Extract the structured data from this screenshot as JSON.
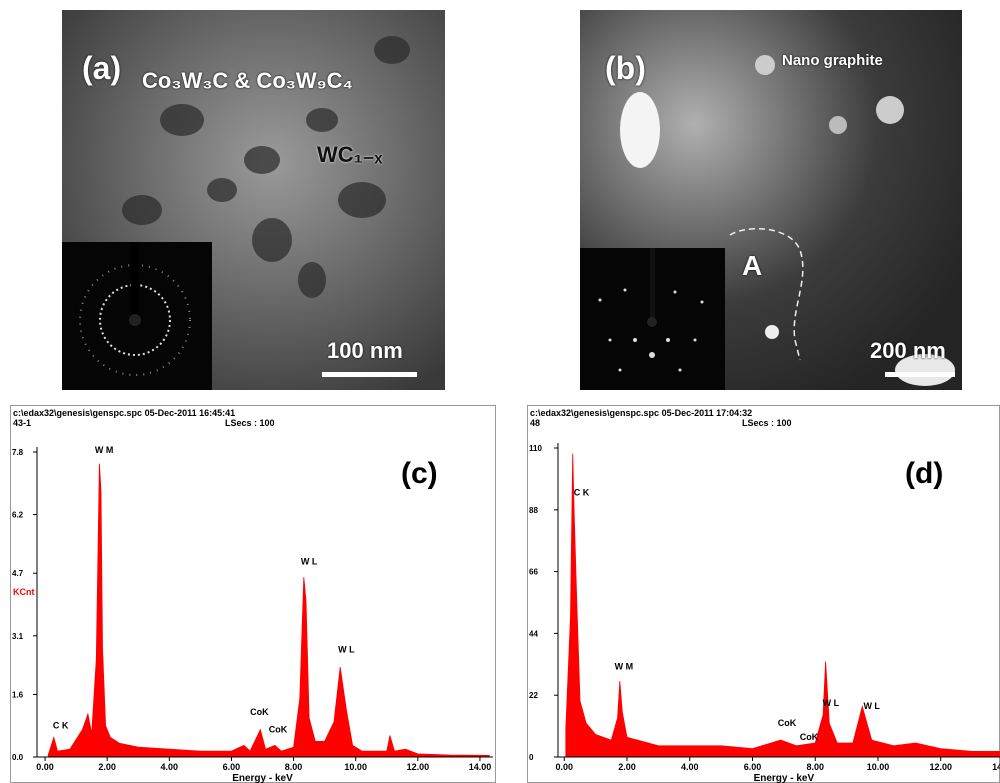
{
  "images": [
    {
      "label": "(a)",
      "notes": [
        "Co₃W₃C & Co₃W₉C₄",
        "WC₁₋ₓ"
      ],
      "scale_bar": "100 nm"
    },
    {
      "label": "(b)",
      "notes": [
        "Nano graphite",
        "A"
      ],
      "scale_bar": "200 nm"
    }
  ],
  "chart_data": [
    {
      "type": "area",
      "title": "(c)",
      "header": [
        "c:\\edax32\\genesis\\genspc.spc  05-Dec-2011 16:45:41",
        "43-1",
        "LSecs : 100"
      ],
      "ylabel": "KCnt",
      "xlabel": "Energy - keV",
      "color": "#ff0000",
      "x": [
        0.1,
        0.28,
        0.4,
        0.8,
        1.2,
        1.38,
        1.5,
        1.65,
        1.75,
        1.8,
        1.85,
        1.95,
        2.1,
        2.4,
        3,
        4,
        5,
        6,
        6.4,
        6.6,
        6.93,
        7.1,
        7.4,
        7.6,
        8.0,
        8.2,
        8.33,
        8.4,
        8.5,
        8.7,
        9.0,
        9.3,
        9.5,
        9.7,
        9.9,
        10.2,
        11.0,
        11.1,
        11.25,
        11.6,
        12,
        13,
        14.3
      ],
      "values": [
        0.05,
        0.5,
        0.15,
        0.2,
        0.7,
        1.1,
        0.6,
        2.5,
        7.5,
        6.8,
        2.8,
        0.8,
        0.5,
        0.35,
        0.25,
        0.2,
        0.15,
        0.15,
        0.3,
        0.15,
        0.7,
        0.2,
        0.3,
        0.15,
        0.25,
        1.5,
        4.6,
        4.0,
        1.0,
        0.4,
        0.4,
        0.9,
        2.3,
        1.2,
        0.3,
        0.15,
        0.15,
        0.55,
        0.15,
        0.2,
        0.08,
        0.05,
        0.04
      ],
      "xlim": [
        -0.26,
        14.42
      ],
      "ylim": [
        0,
        7.8
      ],
      "xticks": [
        {
          "value": 0,
          "label": "0.00"
        },
        {
          "value": 2,
          "label": "2.00"
        },
        {
          "value": 4,
          "label": "4.00"
        },
        {
          "value": 6,
          "label": "6.00"
        },
        {
          "value": 8,
          "label": "8.00"
        },
        {
          "value": 10,
          "label": "10.00"
        },
        {
          "value": 12,
          "label": "12.00"
        },
        {
          "value": 14,
          "label": "14.00"
        }
      ],
      "yticks": [
        {
          "value": 0,
          "label": "0.0"
        },
        1.6,
        3.1,
        4.7,
        6.2,
        7.8
      ],
      "annotations": [
        {
          "text": "C K",
          "x": 0.5,
          "y": 0.65
        },
        {
          "text": "W M",
          "x": 1.9,
          "y": 7.7
        },
        {
          "text": "CoK",
          "x": 6.9,
          "y": 1.0
        },
        {
          "text": "CoK",
          "x": 7.5,
          "y": 0.55
        },
        {
          "text": "W L",
          "x": 8.5,
          "y": 4.85
        },
        {
          "text": "W L",
          "x": 9.7,
          "y": 2.6
        }
      ]
    },
    {
      "type": "area",
      "title": "(d)",
      "header": [
        "c:\\edax32\\genesis\\genspc.spc  05-Dec-2011 17:04:32",
        "48",
        "LSecs : 100"
      ],
      "xlabel": "Energy - keV",
      "color": "#ff0000",
      "x": [
        0.05,
        0.2,
        0.27,
        0.32,
        0.4,
        0.5,
        0.7,
        1.0,
        1.5,
        1.7,
        1.77,
        1.85,
        2.0,
        3,
        4,
        5,
        6,
        6.9,
        7.4,
        8.0,
        8.25,
        8.33,
        8.45,
        8.7,
        9.2,
        9.5,
        9.6,
        9.8,
        10.5,
        11.2,
        12,
        13,
        14,
        14.4
      ],
      "values": [
        10,
        50,
        108,
        85,
        55,
        20,
        12,
        8,
        6,
        14,
        27,
        16,
        7,
        4,
        4,
        4,
        3,
        6,
        4,
        5,
        15,
        34,
        12,
        5,
        5,
        18,
        14,
        6,
        4,
        5,
        3,
        2,
        2,
        2
      ],
      "xlim": [
        -0.2,
        14.4
      ],
      "ylim": [
        0,
        110
      ],
      "xticks": [
        {
          "value": 0,
          "label": "0.00"
        },
        {
          "value": 2,
          "label": "2.00"
        },
        {
          "value": 4,
          "label": "4.00"
        },
        {
          "value": 6,
          "label": "6.00"
        },
        {
          "value": 8,
          "label": "8.00"
        },
        {
          "value": 10,
          "label": "10.00"
        },
        {
          "value": 12,
          "label": "12.00"
        },
        {
          "value": 14,
          "label": "14.00"
        }
      ],
      "yticks": [
        0,
        22,
        44,
        66,
        88,
        110
      ],
      "annotations": [
        {
          "text": "C K",
          "x": 0.55,
          "y": 92
        },
        {
          "text": "W M",
          "x": 1.9,
          "y": 30
        },
        {
          "text": "CoK",
          "x": 7.1,
          "y": 10
        },
        {
          "text": "CoK",
          "x": 7.8,
          "y": 5
        },
        {
          "text": "W L",
          "x": 8.5,
          "y": 17
        },
        {
          "text": "W L",
          "x": 9.8,
          "y": 16
        }
      ]
    }
  ]
}
